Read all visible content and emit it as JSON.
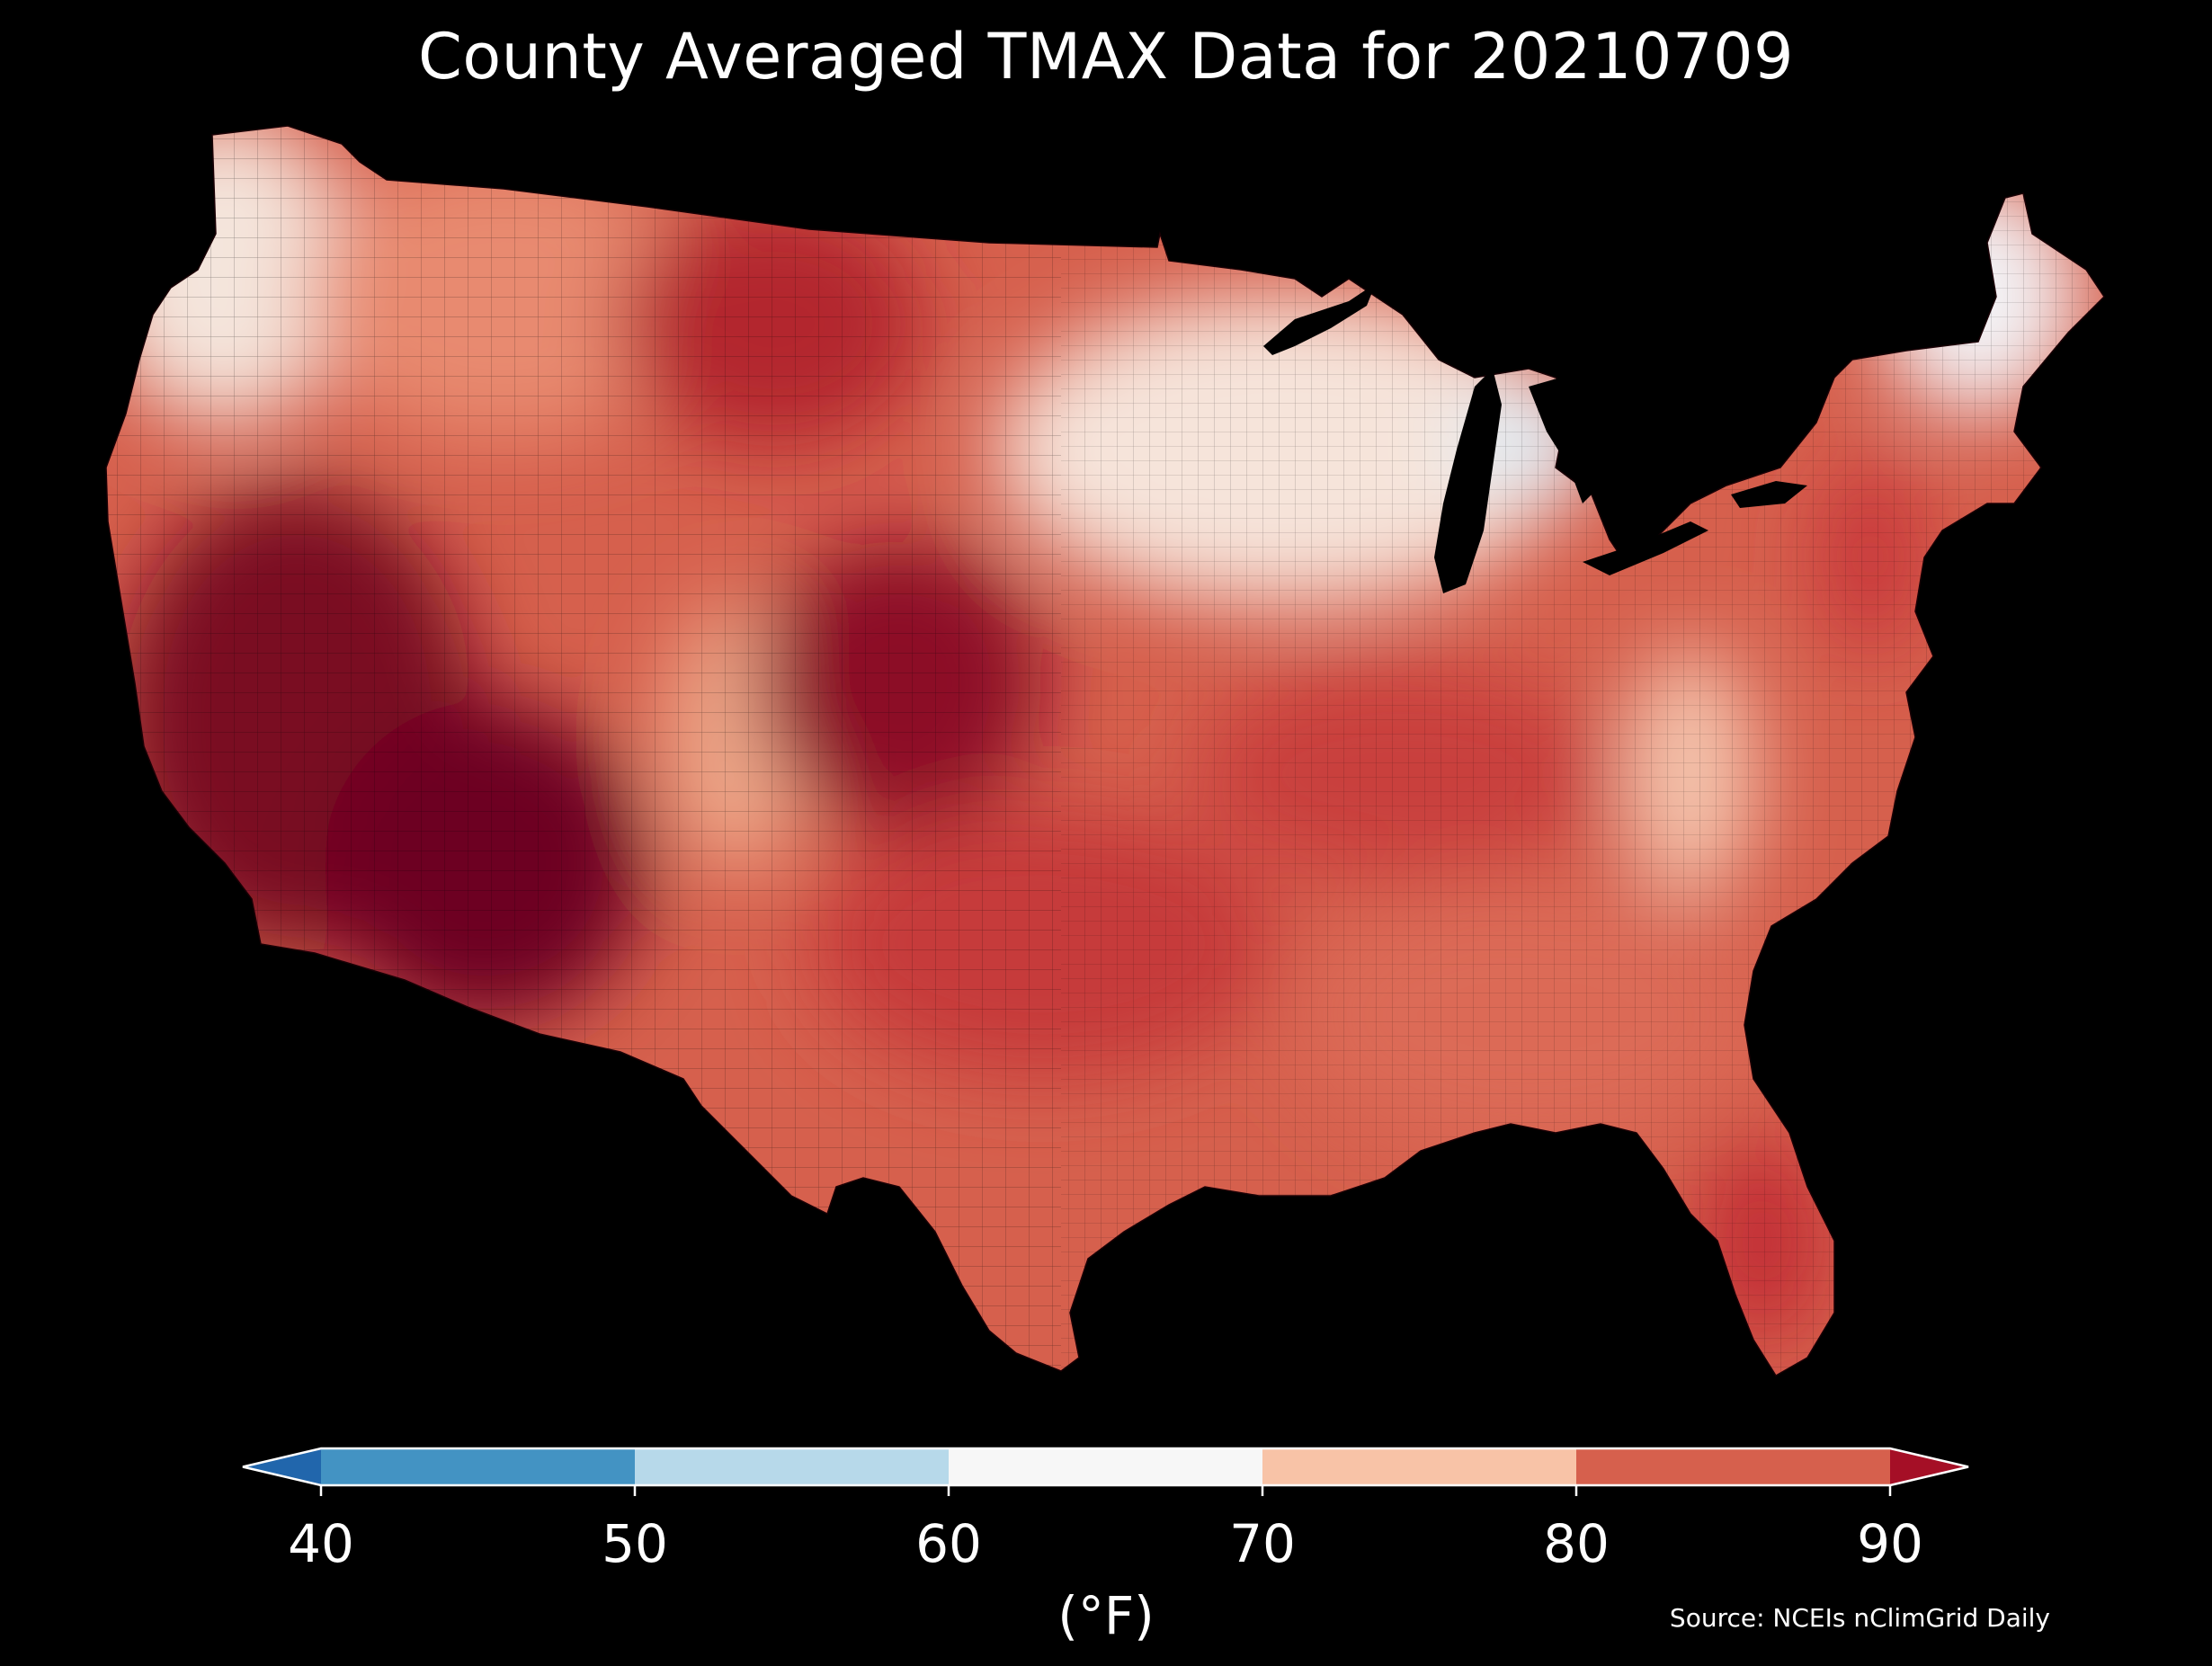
{
  "title": "County Averaged TMAX Data for 20210709",
  "colorbar": {
    "ticks": [
      "40",
      "50",
      "60",
      "70",
      "80",
      "90"
    ],
    "unit": "(°F)",
    "bins": [
      {
        "range": "<40",
        "color": "#2166ac"
      },
      {
        "range": "40-50",
        "color": "#4393c3"
      },
      {
        "range": "50-60",
        "color": "#b7d9ea"
      },
      {
        "range": "60-70",
        "color": "#f7f7f7"
      },
      {
        "range": "70-80",
        "color": "#f8c3a7"
      },
      {
        "range": "80-90",
        "color": "#d6604d"
      },
      {
        "range": ">90",
        "color": "#a50f26"
      }
    ]
  },
  "source": "Source: NCEIs nClimGrid Daily",
  "map_regions": [
    {
      "region": "pacific-northwest-coast",
      "tmax_bin": "60-70",
      "color": "#f4e5dc"
    },
    {
      "region": "northern-rockies",
      "tmax_bin": "70-80",
      "color": "#e88a6f"
    },
    {
      "region": "california-nevada",
      "tmax_bin": ">90",
      "color": "#7a0822"
    },
    {
      "region": "southwest-desert",
      "tmax_bin": ">90",
      "color": "#6d0520"
    },
    {
      "region": "colorado-rockies",
      "tmax_bin": "70-80",
      "color": "#f0ab8c"
    },
    {
      "region": "central-plains",
      "tmax_bin": ">90",
      "color": "#8c0c27"
    },
    {
      "region": "texas-oklahoma",
      "tmax_bin": "80-90",
      "color": "#c63a3a"
    },
    {
      "region": "upper-midwest",
      "tmax_bin": "60-70",
      "color": "#f6e4da"
    },
    {
      "region": "michigan-lower",
      "tmax_bin": "50-60",
      "color": "#e1eef6"
    },
    {
      "region": "ohio-valley",
      "tmax_bin": "80-90",
      "color": "#c9403e"
    },
    {
      "region": "appalachians",
      "tmax_bin": "70-80",
      "color": "#f5c7b0"
    },
    {
      "region": "southeast",
      "tmax_bin": "80-90",
      "color": "#dc6a57"
    },
    {
      "region": "mid-atlantic-coast",
      "tmax_bin": "80-90",
      "color": "#c8373a"
    },
    {
      "region": "new-england",
      "tmax_bin": "60-70",
      "color": "#f3f3f6"
    },
    {
      "region": "florida",
      "tmax_bin": "80-90",
      "color": "#c22f36"
    }
  ],
  "lakes": [
    "lake-superior",
    "lake-michigan",
    "lake-huron",
    "lake-erie",
    "lake-ontario"
  ]
}
